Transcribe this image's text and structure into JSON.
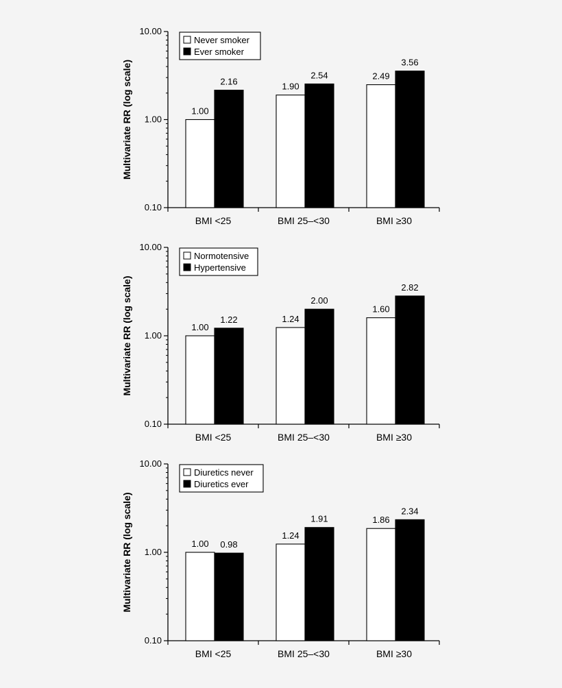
{
  "chart_data": [
    {
      "type": "bar",
      "ylabel": "Multivariate RR (log scale)",
      "yscale": "log",
      "ylim": [
        0.1,
        10
      ],
      "yticks": [
        "0.10",
        "1.00",
        "10.00"
      ],
      "categories": [
        "BMI <25",
        "BMI 25–<30",
        "BMI ≥30"
      ],
      "legend_position": "top-left",
      "series": [
        {
          "name": "Never smoker",
          "color": "#ffffff",
          "values": [
            1.0,
            1.9,
            2.49
          ],
          "labels": [
            "1.00",
            "1.90",
            "2.49"
          ]
        },
        {
          "name": "Ever smoker",
          "color": "#000000",
          "values": [
            2.16,
            2.54,
            3.56
          ],
          "labels": [
            "2.16",
            "2.54",
            "3.56"
          ]
        }
      ]
    },
    {
      "type": "bar",
      "ylabel": "Multivariate RR (log scale)",
      "yscale": "log",
      "ylim": [
        0.1,
        10
      ],
      "yticks": [
        "0.10",
        "1.00",
        "10.00"
      ],
      "categories": [
        "BMI <25",
        "BMI 25–<30",
        "BMI ≥30"
      ],
      "legend_position": "top-left",
      "series": [
        {
          "name": "Normotensive",
          "color": "#ffffff",
          "values": [
            1.0,
            1.24,
            1.6
          ],
          "labels": [
            "1.00",
            "1.24",
            "1.60"
          ]
        },
        {
          "name": "Hypertensive",
          "color": "#000000",
          "values": [
            1.22,
            2.0,
            2.82
          ],
          "labels": [
            "1.22",
            "2.00",
            "2.82"
          ]
        }
      ]
    },
    {
      "type": "bar",
      "ylabel": "Multivariate RR (log scale)",
      "yscale": "log",
      "ylim": [
        0.1,
        10
      ],
      "yticks": [
        "0.10",
        "1.00",
        "10.00"
      ],
      "categories": [
        "BMI <25",
        "BMI 25–<30",
        "BMI ≥30"
      ],
      "legend_position": "top-left",
      "series": [
        {
          "name": "Diuretics never",
          "color": "#ffffff",
          "values": [
            1.0,
            1.24,
            1.86
          ],
          "labels": [
            "1.00",
            "1.24",
            "1.86"
          ]
        },
        {
          "name": "Diuretics ever",
          "color": "#000000",
          "values": [
            0.98,
            1.91,
            2.34
          ],
          "labels": [
            "0.98",
            "1.91",
            "2.34"
          ]
        }
      ]
    }
  ]
}
